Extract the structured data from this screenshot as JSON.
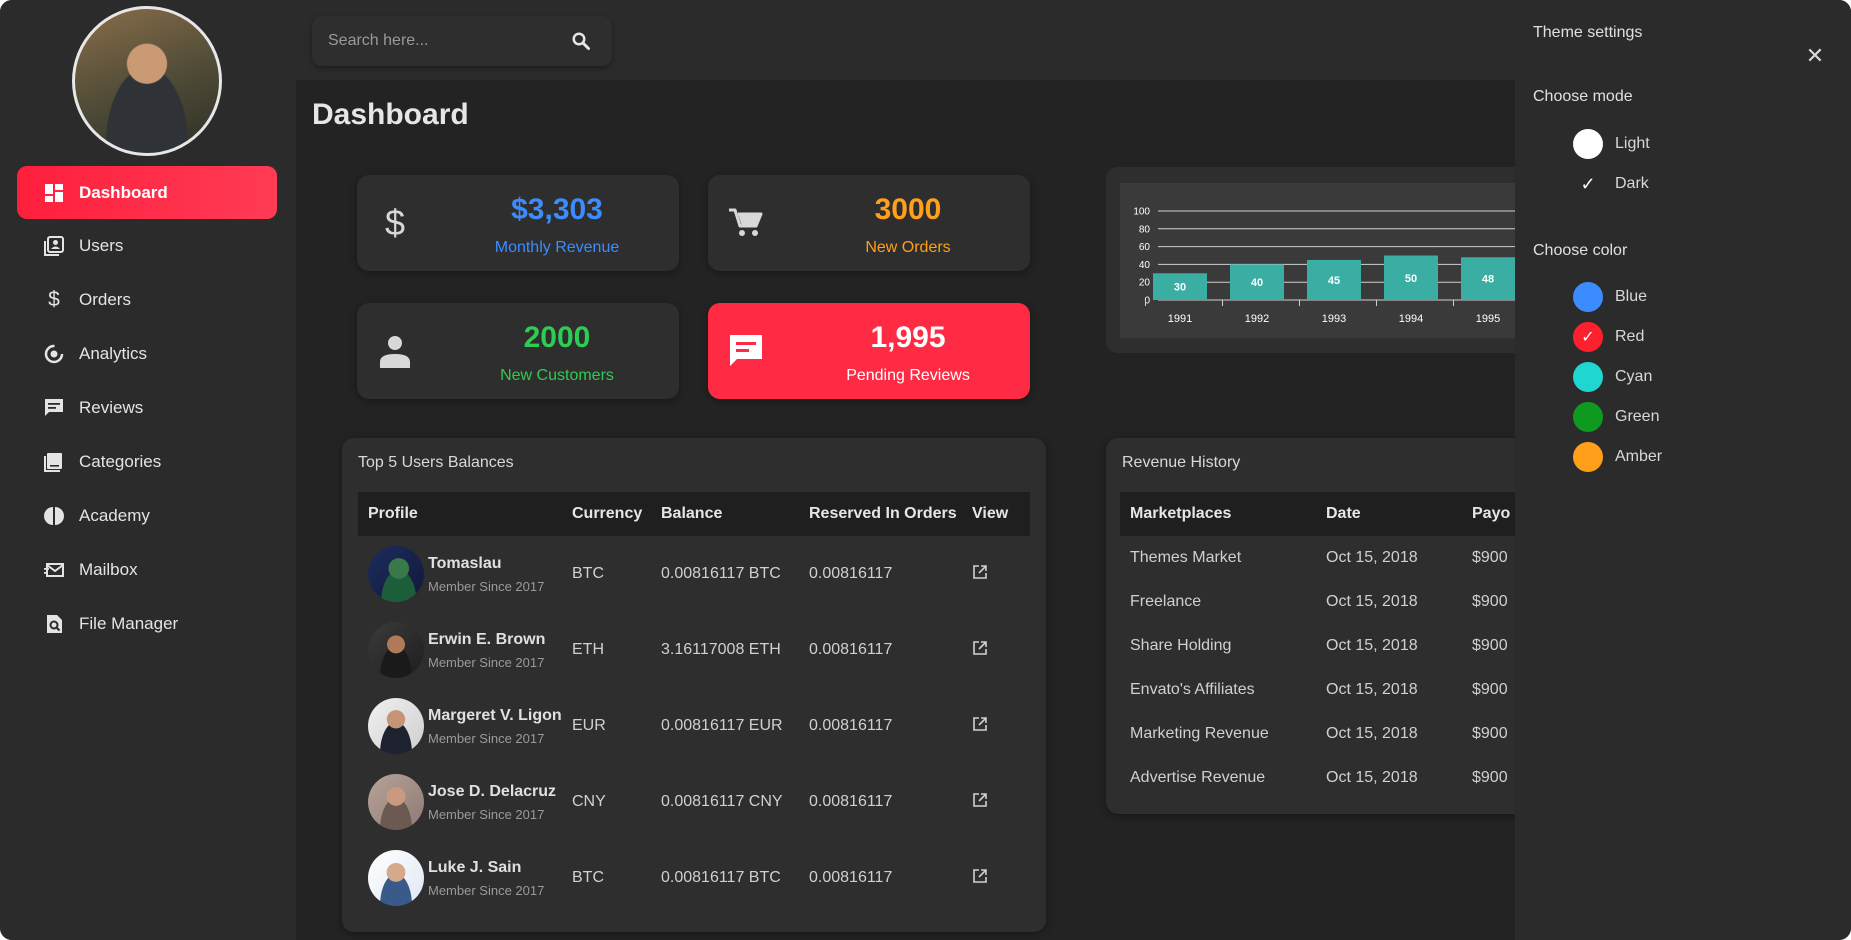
{
  "sidebar": {
    "items": [
      {
        "label": "Dashboard",
        "icon": "dashboard-icon",
        "active": true
      },
      {
        "label": "Users",
        "icon": "users-icon"
      },
      {
        "label": "Orders",
        "icon": "dollar-icon"
      },
      {
        "label": "Analytics",
        "icon": "analytics-icon"
      },
      {
        "label": "Reviews",
        "icon": "reviews-icon"
      },
      {
        "label": "Categories",
        "icon": "categories-icon"
      },
      {
        "label": "Academy",
        "icon": "academy-icon"
      },
      {
        "label": "Mailbox",
        "icon": "mailbox-icon"
      },
      {
        "label": "File Manager",
        "icon": "file-manager-icon"
      }
    ]
  },
  "search": {
    "placeholder": "Search here..."
  },
  "page": {
    "title": "Dashboard"
  },
  "stats": [
    {
      "value": "$3,303",
      "label": "Monthly Revenue",
      "color": "#3b8cff",
      "icon": "dollar-icon"
    },
    {
      "value": "3000",
      "label": "New Orders",
      "color": "#ff9f1a",
      "icon": "cart-icon"
    },
    {
      "value": "2000",
      "label": "New Customers",
      "color": "#2ecc52",
      "icon": "person-icon"
    },
    {
      "value": "1,995",
      "label": "Pending Reviews",
      "color": "#ffffff",
      "icon": "message-icon"
    }
  ],
  "chart_data": {
    "type": "bar",
    "categories": [
      "1991",
      "1992",
      "1993",
      "1994",
      "1995"
    ],
    "values": [
      30,
      40,
      45,
      50,
      48
    ],
    "y_ticks": [
      "0",
      "20",
      "40",
      "60",
      "80",
      "100"
    ],
    "ylim": [
      0,
      100
    ],
    "bar_color": "#3aaea3",
    "grid": true
  },
  "users": {
    "title": "Top 5 Users Balances",
    "columns": [
      "Profile",
      "Currency",
      "Balance",
      "Reserved In Orders",
      "View"
    ],
    "rows": [
      {
        "name": "Tomaslau",
        "since": "Member Since 2017",
        "currency": "BTC",
        "balance": "0.00816117 BTC",
        "reserved": "0.00816117"
      },
      {
        "name": "Erwin E. Brown",
        "since": "Member Since 2017",
        "currency": "ETH",
        "balance": "3.16117008 ETH",
        "reserved": "0.00816117"
      },
      {
        "name": "Margeret V. Ligon",
        "since": "Member Since 2017",
        "currency": "EUR",
        "balance": "0.00816117 EUR",
        "reserved": "0.00816117"
      },
      {
        "name": "Jose D. Delacruz",
        "since": "Member Since 2017",
        "currency": "CNY",
        "balance": "0.00816117 CNY",
        "reserved": "0.00816117"
      },
      {
        "name": "Luke J. Sain",
        "since": "Member Since 2017",
        "currency": "BTC",
        "balance": "0.00816117 BTC",
        "reserved": "0.00816117"
      }
    ]
  },
  "revenue": {
    "title": "Revenue History",
    "columns": [
      "Marketplaces",
      "Date",
      "Payo"
    ],
    "rows": [
      {
        "market": "Themes Market",
        "date": "Oct 15, 2018",
        "payout": "$900"
      },
      {
        "market": "Freelance",
        "date": "Oct 15, 2018",
        "payout": "$900"
      },
      {
        "market": "Share Holding",
        "date": "Oct 15, 2018",
        "payout": "$900"
      },
      {
        "market": "Envato's Affiliates",
        "date": "Oct 15, 2018",
        "payout": "$900"
      },
      {
        "market": "Marketing Revenue",
        "date": "Oct 15, 2018",
        "payout": "$900"
      },
      {
        "market": "Advertise Revenue",
        "date": "Oct 15, 2018",
        "payout": "$900"
      }
    ]
  },
  "theme": {
    "title": "Theme settings",
    "mode_label": "Choose mode",
    "modes": [
      {
        "label": "Light",
        "selected": false
      },
      {
        "label": "Dark",
        "selected": true
      }
    ],
    "color_label": "Choose color",
    "colors": [
      {
        "label": "Blue",
        "hex": "#3b8cff",
        "selected": false
      },
      {
        "label": "Red",
        "hex": "#ff1f2d",
        "selected": true
      },
      {
        "label": "Cyan",
        "hex": "#1fd6d0",
        "selected": false
      },
      {
        "label": "Green",
        "hex": "#0e9a1e",
        "selected": false
      },
      {
        "label": "Amber",
        "hex": "#ff9f1a",
        "selected": false
      }
    ]
  }
}
